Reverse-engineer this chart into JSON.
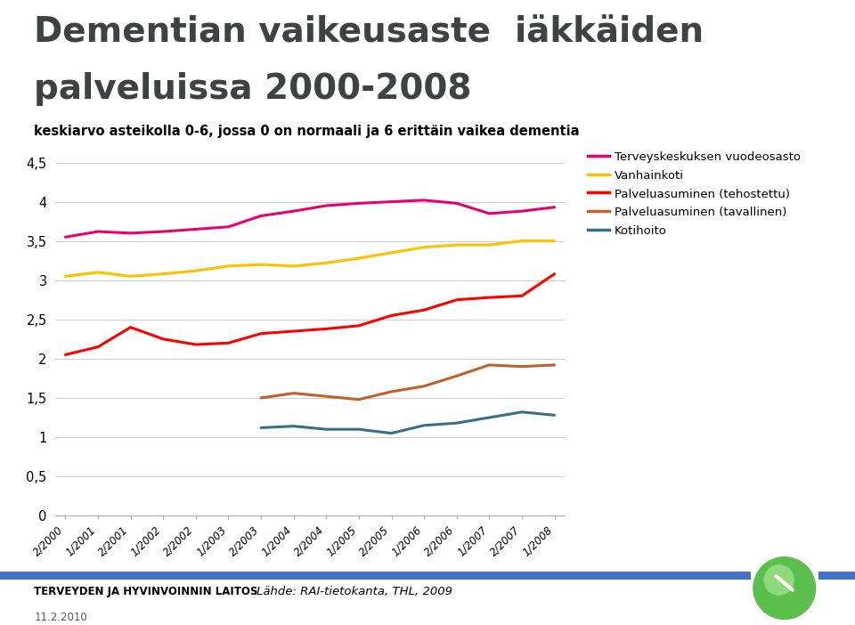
{
  "title_line1": "Dementian vaikeusaste  iäkkäiden",
  "title_line2": "palveluissa 2000-2008",
  "subtitle": "keskiarvo asteikolla 0-6, jossa 0 on normaali ja 6 erittäin vaikea dementia",
  "x_labels": [
    "2/2000",
    "1/2001",
    "2/2001",
    "1/2002",
    "2/2002",
    "1/2003",
    "2/2003",
    "1/2004",
    "2/2004",
    "1/2005",
    "2/2005",
    "1/2006",
    "2/2006",
    "1/2007",
    "2/2007",
    "1/2008"
  ],
  "ylim": [
    0,
    4.5
  ],
  "yticks": [
    0,
    0.5,
    1,
    1.5,
    2,
    2.5,
    3,
    3.5,
    4,
    4.5
  ],
  "ytick_labels": [
    "0",
    "0,5",
    "1",
    "1,5",
    "2",
    "2,5",
    "3",
    "3,5",
    "4",
    "4,5"
  ],
  "series": [
    {
      "label": "Terveyskeskuksen vuodeosasto",
      "color": "#E8006F",
      "linewidth": 2.2,
      "data": [
        3.55,
        3.62,
        3.6,
        3.62,
        3.65,
        3.68,
        3.82,
        3.88,
        3.95,
        3.98,
        4.0,
        4.02,
        3.98,
        3.85,
        3.88,
        3.93
      ]
    },
    {
      "label": "Vanhainkoti",
      "color": "#FFC000",
      "linewidth": 2.2,
      "data": [
        3.05,
        3.1,
        3.05,
        3.08,
        3.12,
        3.18,
        3.2,
        3.18,
        3.22,
        3.28,
        3.35,
        3.42,
        3.45,
        3.45,
        3.5,
        3.5
      ]
    },
    {
      "label": "Palveluasuminen (tehostettu)",
      "color": "#FF0000",
      "linewidth": 2.2,
      "data": [
        2.05,
        2.15,
        2.4,
        2.25,
        2.18,
        2.2,
        2.32,
        2.35,
        2.38,
        2.42,
        2.55,
        2.62,
        2.75,
        2.78,
        2.8,
        3.08
      ]
    },
    {
      "label": "Palveluasuminen (tavallinen)",
      "color": "#C0612B",
      "linewidth": 2.2,
      "data": [
        null,
        null,
        null,
        null,
        null,
        null,
        1.5,
        1.56,
        1.52,
        1.48,
        1.58,
        1.65,
        1.78,
        1.92,
        1.9,
        1.92
      ]
    },
    {
      "label": "Kotihoito",
      "color": "#376E89",
      "linewidth": 2.2,
      "data": [
        null,
        null,
        null,
        null,
        null,
        null,
        1.12,
        1.14,
        1.1,
        1.1,
        1.05,
        1.15,
        1.18,
        1.25,
        1.32,
        1.28
      ]
    }
  ],
  "footer_left": "TERVEYDEN JA HYVINVOINNIN LAITOS",
  "footer_right": "Lähde: RAI-tietokanta, THL, 2009",
  "date_text": "11.2.2010",
  "background_color": "#FFFFFF",
  "plot_bg_color": "#FFFFFF",
  "grid_color": "#CCCCCC",
  "title_color": "#3F4142",
  "subtitle_color": "#000000",
  "footer_bar_color": "#4472C4"
}
